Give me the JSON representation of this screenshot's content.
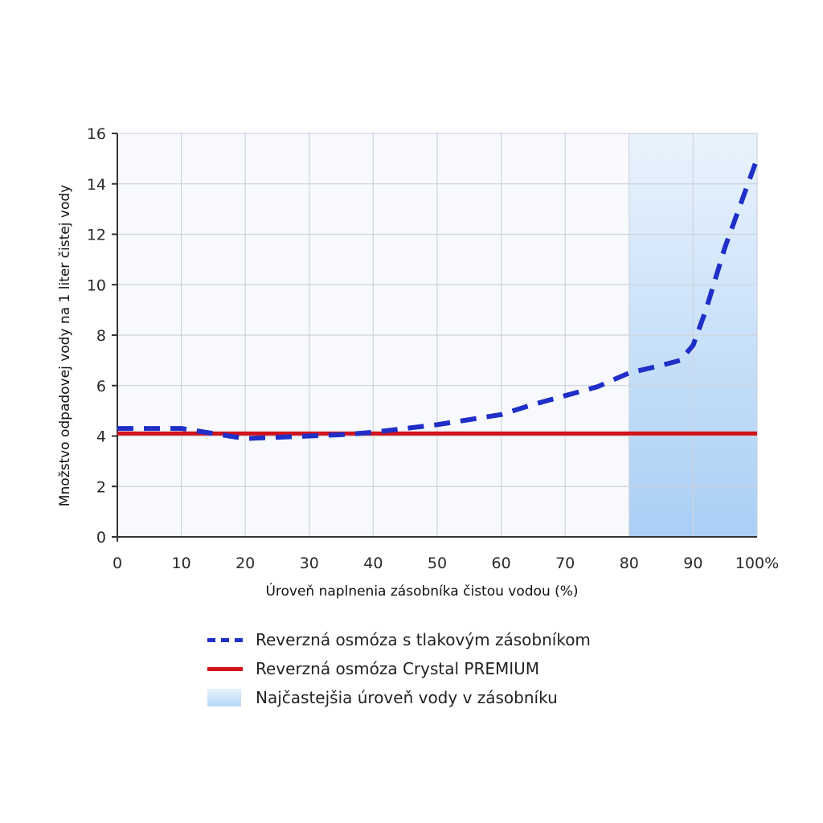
{
  "chart_data": {
    "type": "line",
    "title": "",
    "xlabel": "Úroveň naplnenia zásobníka čistou vodou (%)",
    "ylabel": "Množstvo odpadovej vody na 1 liter čistej vody",
    "xlim": [
      0,
      100
    ],
    "ylim": [
      0,
      16
    ],
    "x_ticks": [
      "0",
      "10",
      "20",
      "30",
      "40",
      "50",
      "60",
      "70",
      "80",
      "90",
      "100%"
    ],
    "y_ticks": [
      "0",
      "2",
      "4",
      "6",
      "8",
      "10",
      "12",
      "14",
      "16"
    ],
    "grid": true,
    "legend_position": "bottom",
    "shaded_region": {
      "name": "Najčastejšia úroveň vody v zásobníku",
      "x_start": 80,
      "x_end": 100,
      "color": "#bcdaf7"
    },
    "series": [
      {
        "name": "Reverzná osmóza s tlakovým zásobníkom",
        "style": "dashed",
        "color": "#1f2fc8",
        "x": [
          0,
          5,
          10,
          15,
          20,
          25,
          30,
          35,
          40,
          45,
          50,
          55,
          60,
          65,
          70,
          75,
          80,
          85,
          88,
          90,
          92,
          95,
          100
        ],
        "y": [
          4.3,
          4.3,
          4.3,
          4.1,
          3.9,
          3.95,
          4.0,
          4.05,
          4.15,
          4.3,
          4.45,
          4.65,
          4.85,
          5.25,
          5.6,
          5.95,
          6.5,
          6.8,
          7.0,
          7.6,
          9.0,
          11.5,
          15.0
        ]
      },
      {
        "name": "Reverzná osmóza Crystal PREMIUM",
        "style": "solid",
        "color": "#d2121a",
        "x": [
          0,
          100
        ],
        "y": [
          4.1,
          4.1
        ]
      }
    ]
  }
}
